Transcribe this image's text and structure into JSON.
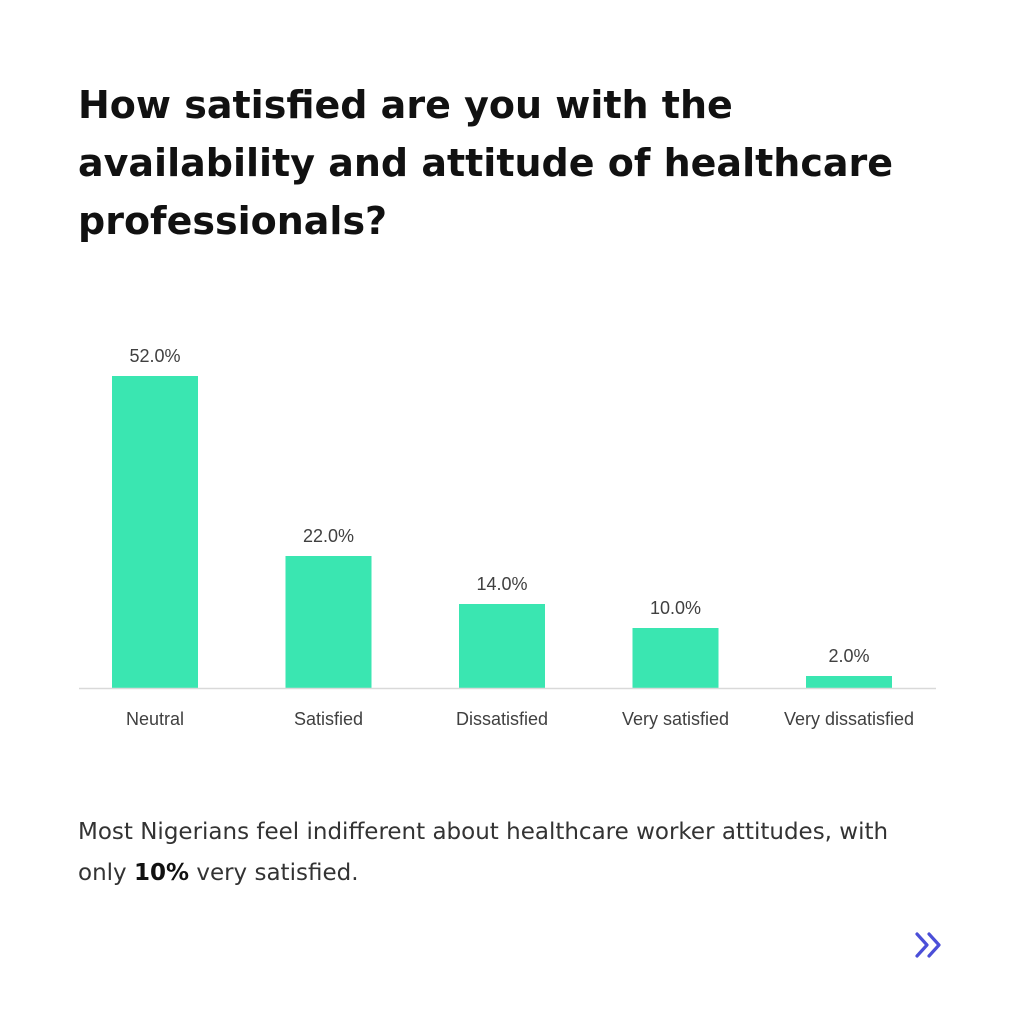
{
  "title": "How satisfied are you with the availability and attitude of healthcare professionals?",
  "caption": {
    "before": "Most Nigerians feel indifferent about healthcare worker attitudes, with only ",
    "highlight": "10%",
    "after": " very satisfied."
  },
  "nav": {
    "next_icon": "double-chevron-right-icon"
  },
  "colors": {
    "bar": "#3ae6b1",
    "axis": "#d9d9d9",
    "label": "#404040",
    "accent": "#4b4fd8"
  },
  "chart_data": {
    "type": "bar",
    "categories": [
      "Neutral",
      "Satisfied",
      "Dissatisfied",
      "Very satisfied",
      "Very dissatisfied"
    ],
    "values": [
      52.0,
      22.0,
      14.0,
      10.0,
      2.0
    ],
    "data_labels": [
      "52.0%",
      "22.0%",
      "14.0%",
      "10.0%",
      "2.0%"
    ],
    "title": "",
    "xlabel": "",
    "ylabel": "",
    "ylim": [
      0,
      52
    ],
    "grid": false,
    "legend": "none"
  }
}
